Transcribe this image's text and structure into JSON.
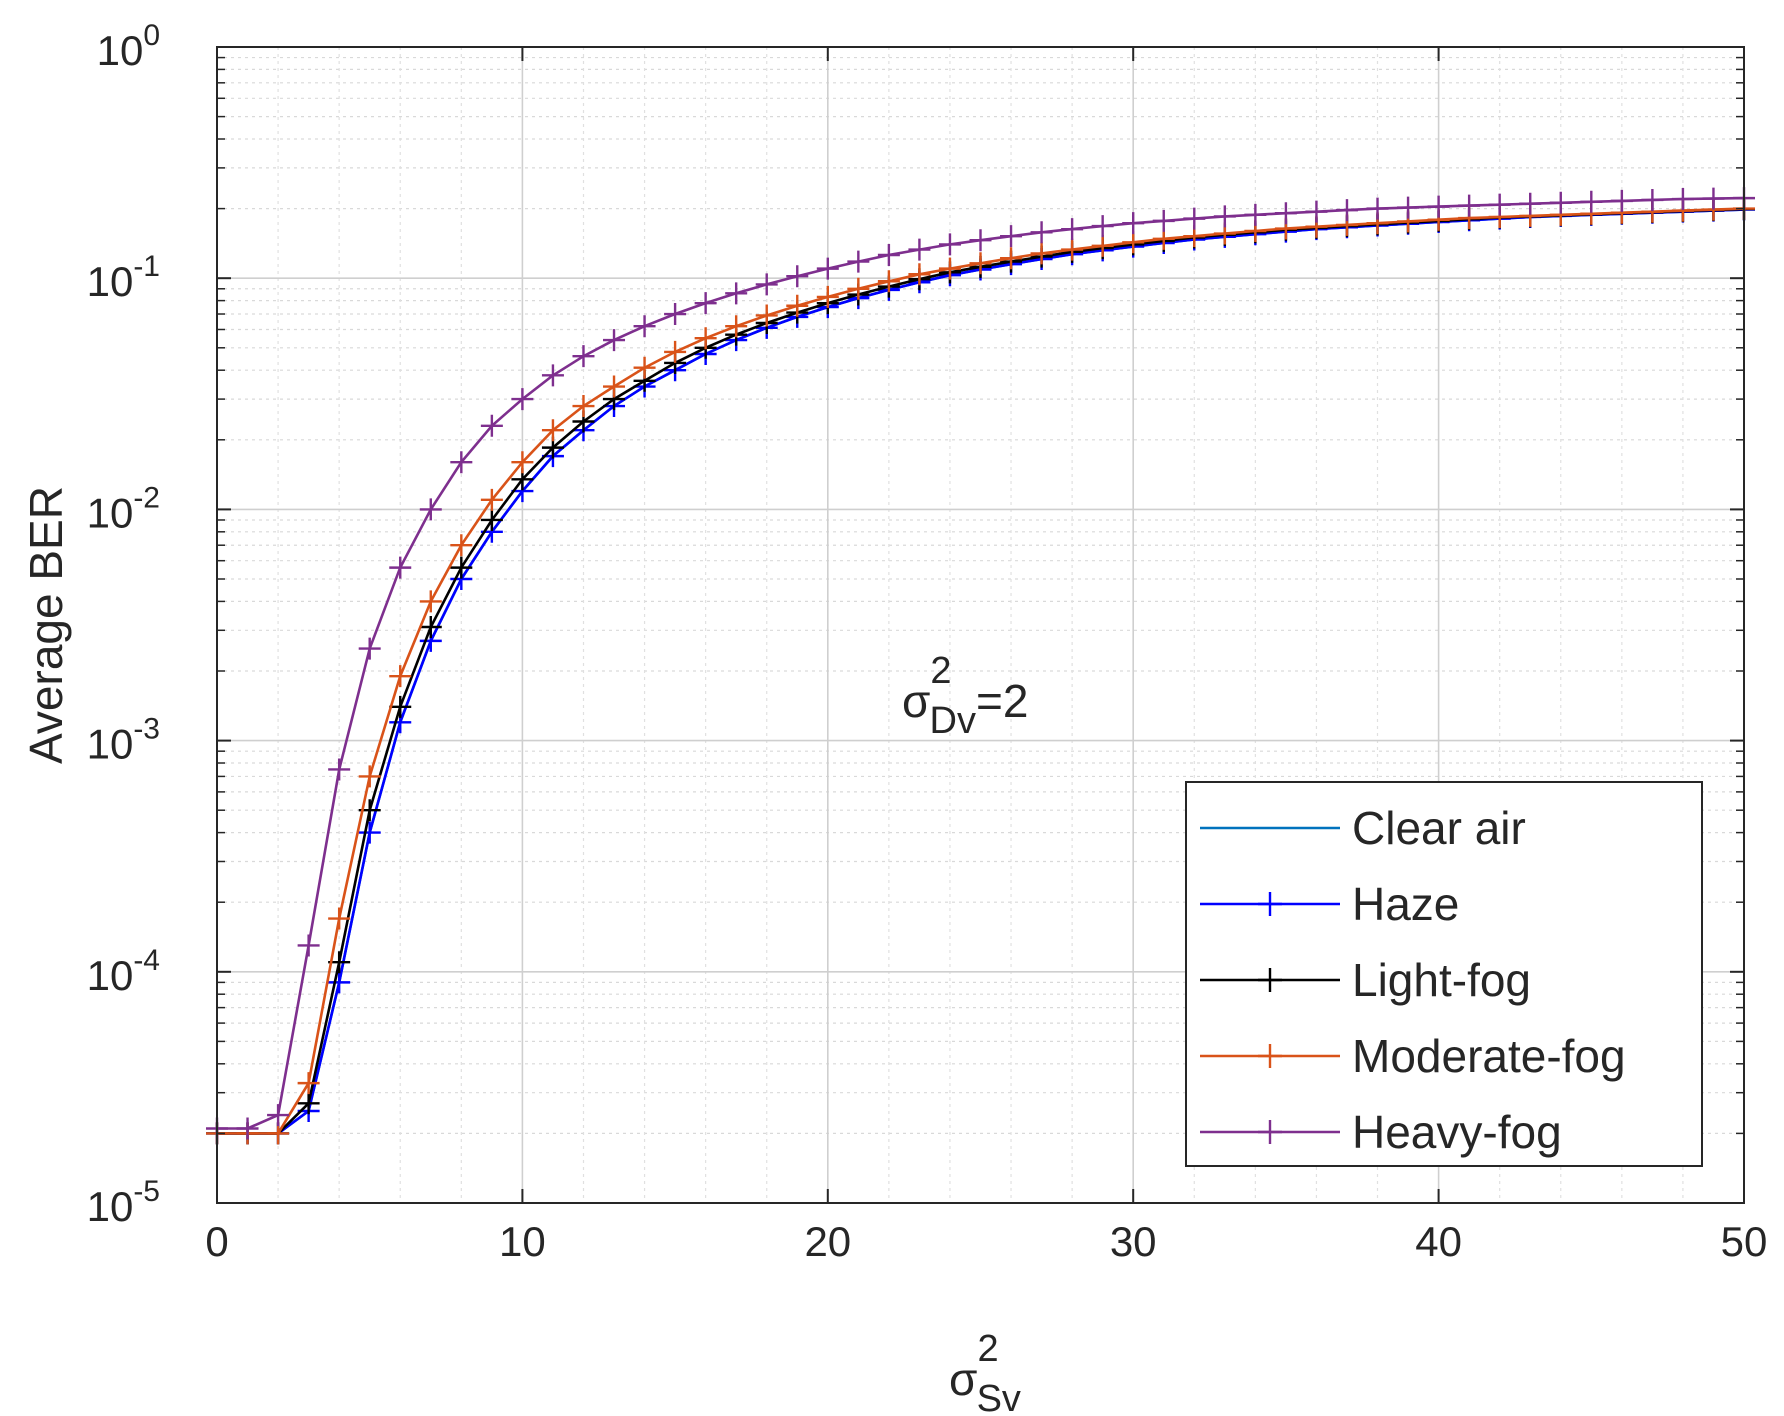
{
  "chart_data": {
    "type": "line",
    "title": "",
    "xlabel": {
      "base": "σ",
      "sup": "2",
      "sub": "Sv"
    },
    "ylabel": "Average BER",
    "xlim": [
      0,
      50
    ],
    "ylim": [
      1e-05,
      1
    ],
    "yscale": "log",
    "grid": true,
    "minor_grid": true,
    "x_ticks": [
      "0",
      "10",
      "20",
      "30",
      "40",
      "50"
    ],
    "x_tick_values": [
      0,
      10,
      20,
      30,
      40,
      50
    ],
    "y_ticks": [
      {
        "base": "10",
        "exp": "0",
        "value": 1
      },
      {
        "base": "10",
        "exp": "-1",
        "value": 0.1
      },
      {
        "base": "10",
        "exp": "-2",
        "value": 0.01
      },
      {
        "base": "10",
        "exp": "-3",
        "value": 0.001
      },
      {
        "base": "10",
        "exp": "-4",
        "value": 0.0001
      },
      {
        "base": "10",
        "exp": "-5",
        "value": 1e-05
      }
    ],
    "annotation": {
      "base": "σ",
      "sup": "2",
      "sub": "Dv",
      "suffix": "=2"
    },
    "legend_position": "bottom-right",
    "x": [
      0,
      1,
      2,
      3,
      4,
      5,
      6,
      7,
      8,
      9,
      10,
      11,
      12,
      13,
      14,
      15,
      16,
      17,
      18,
      19,
      20,
      21,
      22,
      23,
      24,
      25,
      26,
      27,
      28,
      29,
      30,
      31,
      32,
      33,
      34,
      35,
      36,
      37,
      38,
      39,
      40,
      41,
      42,
      43,
      44,
      45,
      46,
      47,
      48,
      49,
      50
    ],
    "series": [
      {
        "name": "Clear air",
        "color": "#0072BD",
        "marker": "none",
        "values": [
          2e-05,
          2e-05,
          2e-05,
          2.5e-05,
          9e-05,
          0.0004,
          0.0012,
          0.0027,
          0.005,
          0.008,
          0.012,
          0.017,
          0.022,
          0.028,
          0.034,
          0.04,
          0.047,
          0.054,
          0.061,
          0.068,
          0.075,
          0.082,
          0.089,
          0.096,
          0.103,
          0.109,
          0.115,
          0.121,
          0.127,
          0.132,
          0.137,
          0.142,
          0.147,
          0.151,
          0.155,
          0.159,
          0.163,
          0.166,
          0.169,
          0.172,
          0.175,
          0.178,
          0.181,
          0.184,
          0.186,
          0.188,
          0.19,
          0.192,
          0.194,
          0.196,
          0.198
        ]
      },
      {
        "name": "Haze",
        "color": "#0000FF",
        "marker": "+",
        "values": [
          2e-05,
          2e-05,
          2e-05,
          2.5e-05,
          9e-05,
          0.0004,
          0.0012,
          0.0027,
          0.005,
          0.008,
          0.012,
          0.017,
          0.022,
          0.028,
          0.034,
          0.04,
          0.047,
          0.054,
          0.061,
          0.068,
          0.075,
          0.082,
          0.089,
          0.096,
          0.103,
          0.109,
          0.115,
          0.121,
          0.127,
          0.132,
          0.137,
          0.142,
          0.147,
          0.151,
          0.155,
          0.159,
          0.163,
          0.166,
          0.169,
          0.172,
          0.175,
          0.178,
          0.181,
          0.184,
          0.186,
          0.188,
          0.19,
          0.192,
          0.194,
          0.196,
          0.198
        ]
      },
      {
        "name": "Light-fog",
        "color": "#000000",
        "marker": "+",
        "values": [
          2e-05,
          2e-05,
          2e-05,
          2.7e-05,
          0.00011,
          0.0005,
          0.0014,
          0.0031,
          0.0056,
          0.009,
          0.0135,
          0.0185,
          0.024,
          0.03,
          0.036,
          0.043,
          0.05,
          0.057,
          0.064,
          0.071,
          0.078,
          0.085,
          0.092,
          0.099,
          0.106,
          0.112,
          0.118,
          0.124,
          0.13,
          0.135,
          0.14,
          0.145,
          0.15,
          0.154,
          0.158,
          0.162,
          0.165,
          0.168,
          0.171,
          0.174,
          0.177,
          0.18,
          0.183,
          0.185,
          0.187,
          0.189,
          0.191,
          0.193,
          0.195,
          0.197,
          0.199
        ]
      },
      {
        "name": "Moderate-fog",
        "color": "#D95319",
        "marker": "+",
        "values": [
          2e-05,
          2e-05,
          2e-05,
          3.3e-05,
          0.00017,
          0.0007,
          0.0019,
          0.004,
          0.007,
          0.011,
          0.016,
          0.022,
          0.028,
          0.034,
          0.041,
          0.048,
          0.055,
          0.062,
          0.069,
          0.076,
          0.083,
          0.09,
          0.097,
          0.104,
          0.11,
          0.116,
          0.122,
          0.128,
          0.133,
          0.138,
          0.143,
          0.148,
          0.152,
          0.156,
          0.16,
          0.164,
          0.167,
          0.17,
          0.173,
          0.176,
          0.179,
          0.182,
          0.184,
          0.186,
          0.188,
          0.19,
          0.192,
          0.194,
          0.196,
          0.198,
          0.2
        ]
      },
      {
        "name": "Heavy-fog",
        "color": "#7E2F8E",
        "marker": "+",
        "values": [
          2.1e-05,
          2.1e-05,
          2.4e-05,
          0.00013,
          0.00075,
          0.0025,
          0.0056,
          0.01,
          0.016,
          0.023,
          0.03,
          0.038,
          0.046,
          0.054,
          0.062,
          0.07,
          0.078,
          0.086,
          0.094,
          0.102,
          0.11,
          0.118,
          0.126,
          0.133,
          0.14,
          0.146,
          0.152,
          0.158,
          0.163,
          0.168,
          0.173,
          0.177,
          0.181,
          0.185,
          0.188,
          0.191,
          0.194,
          0.197,
          0.2,
          0.202,
          0.204,
          0.206,
          0.208,
          0.21,
          0.212,
          0.214,
          0.216,
          0.218,
          0.22,
          0.221,
          0.222
        ]
      }
    ]
  }
}
